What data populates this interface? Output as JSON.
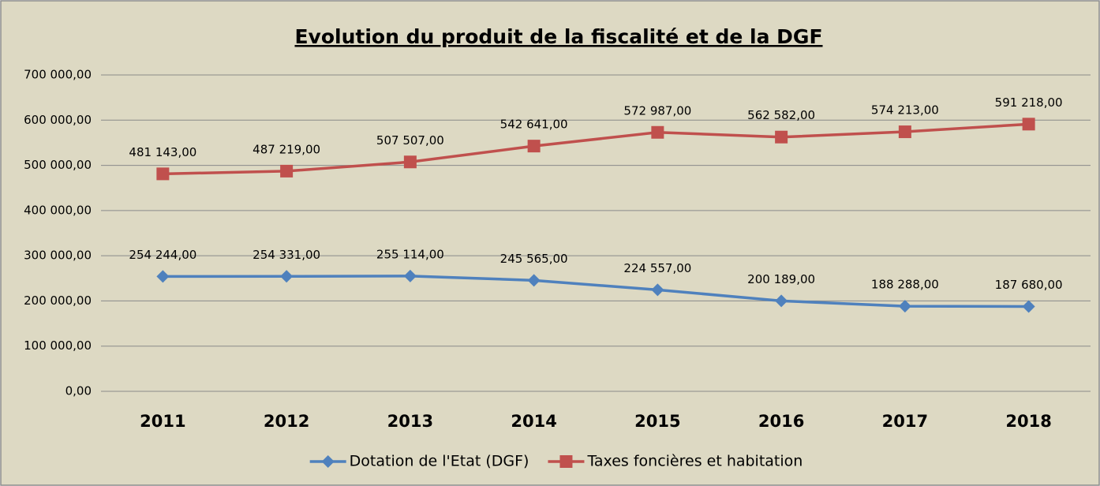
{
  "chart_data": {
    "type": "line",
    "title": "Evolution du produit de la fiscalité et de la DGF",
    "categories": [
      "2011",
      "2012",
      "2013",
      "2014",
      "2015",
      "2016",
      "2017",
      "2018"
    ],
    "series": [
      {
        "name": "Dotation de l'Etat (DGF)",
        "color": "#4f81bd",
        "marker": "diamond",
        "values": [
          254244,
          254331,
          255114,
          245565,
          224557,
          200189,
          188288,
          187680
        ],
        "value_labels": [
          "254 244,00",
          "254 331,00",
          "255 114,00",
          "245 565,00",
          "224 557,00",
          "200 189,00",
          "188 288,00",
          "187 680,00"
        ]
      },
      {
        "name": "Taxes foncières et habitation",
        "color": "#c0504d",
        "marker": "square",
        "values": [
          481143,
          487219,
          507507,
          542641,
          572987,
          562582,
          574213,
          591218
        ],
        "value_labels": [
          "481 143,00",
          "487 219,00",
          "507 507,00",
          "542 641,00",
          "572 987,00",
          "562 582,00",
          "574 213,00",
          "591 218,00"
        ]
      }
    ],
    "ylim": [
      0,
      700000
    ],
    "yticks": [
      {
        "value": 0,
        "label": "0,00"
      },
      {
        "value": 100000,
        "label": "100 000,00"
      },
      {
        "value": 200000,
        "label": "200 000,00"
      },
      {
        "value": 300000,
        "label": "300 000,00"
      },
      {
        "value": 400000,
        "label": "400 000,00"
      },
      {
        "value": 500000,
        "label": "500 000,00"
      },
      {
        "value": 600000,
        "label": "600 000,00"
      },
      {
        "value": 700000,
        "label": "700 000,00"
      }
    ],
    "grid": true,
    "legend": "bottom"
  }
}
